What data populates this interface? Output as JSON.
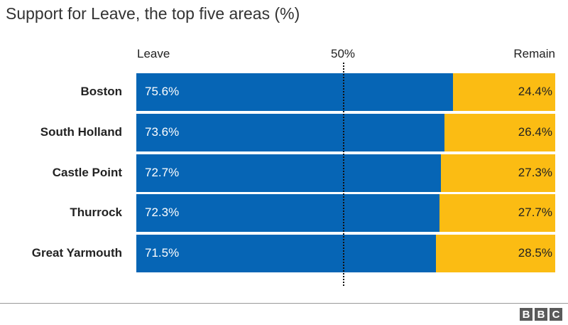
{
  "chart_data": {
    "type": "bar",
    "orientation": "horizontal-stacked",
    "title": "Support for Leave, the top five areas (%)",
    "series_labels": {
      "leave": "Leave",
      "remain": "Remain"
    },
    "reference_label": "50%",
    "reference_value": 50,
    "xlim": [
      0,
      100
    ],
    "categories": [
      "Boston",
      "South Holland",
      "Castle Point",
      "Thurrock",
      "Great Yarmouth"
    ],
    "series": [
      {
        "name": "Leave",
        "values": [
          75.6,
          73.6,
          72.7,
          72.3,
          71.5
        ],
        "labels": [
          "75.6%",
          "73.6%",
          "72.7%",
          "72.3%",
          "71.5%"
        ]
      },
      {
        "name": "Remain",
        "values": [
          24.4,
          26.4,
          27.3,
          27.7,
          28.5
        ],
        "labels": [
          "24.4%",
          "26.4%",
          "27.3%",
          "27.7%",
          "28.5%"
        ]
      }
    ],
    "colors": {
      "leave": "#0665b5",
      "remain": "#fbbc13"
    }
  },
  "footer": {
    "logo_letters": [
      "B",
      "B",
      "C"
    ]
  }
}
